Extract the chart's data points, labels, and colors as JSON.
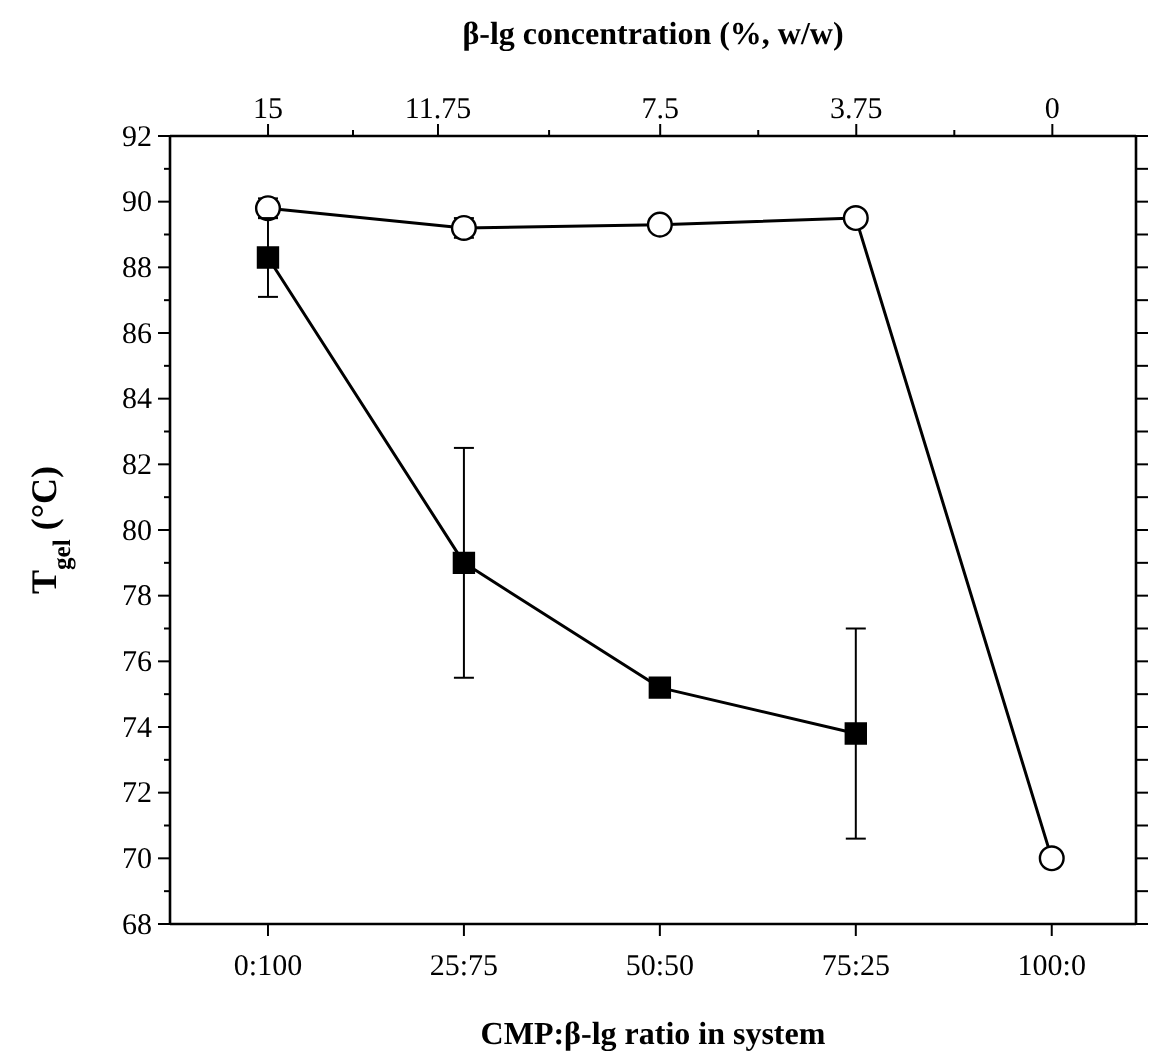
{
  "chart_data": {
    "type": "line",
    "xlabel": "CMP:β-lg ratio in system",
    "ylabel": "T$_{gel}$ (°C)",
    "x2label": "β-lg concentration (%, w/w)",
    "categories": [
      "0:100",
      "25:75",
      "50:50",
      "75:25",
      "100:0"
    ],
    "ylim": [
      68,
      92
    ],
    "yticks": [
      68,
      {
        "value": 69,
        "label": null
      },
      70,
      {
        "value": 71,
        "label": null
      },
      72,
      {
        "value": 73,
        "label": null
      },
      74,
      {
        "value": 75,
        "label": null
      },
      76,
      {
        "value": 77,
        "label": null
      },
      78,
      {
        "value": 79,
        "label": null
      },
      80,
      {
        "value": 81,
        "label": null
      },
      82,
      {
        "value": 83,
        "label": null
      },
      84,
      {
        "value": 85,
        "label": null
      },
      86,
      {
        "value": 87,
        "label": null
      },
      88,
      {
        "value": 89,
        "label": null
      },
      90,
      {
        "value": 91,
        "label": null
      },
      92
    ],
    "x2lim": [
      16.875,
      -1.6
    ],
    "x2ticks": [
      15,
      {
        "value": 13.375,
        "label": null
      },
      11.75,
      {
        "value": 9.625,
        "label": null
      },
      7.5,
      {
        "value": 5.625,
        "label": null
      },
      3.75,
      {
        "value": 1.875,
        "label": null
      },
      0
    ],
    "grid": false,
    "line_style": "solid",
    "series": [
      {
        "color": "#000000",
        "marker": "circle",
        "values": [
          89.8,
          89.2,
          89.3,
          89.5,
          70.0
        ],
        "errors": [
          0.3,
          0.3,
          null,
          null,
          null
        ]
      },
      {
        "color": "#000000",
        "marker": "square",
        "values": [
          88.3,
          79.0,
          75.2,
          73.8,
          null
        ],
        "errors": [
          1.2,
          3.5,
          null,
          3.2,
          null
        ]
      }
    ]
  }
}
